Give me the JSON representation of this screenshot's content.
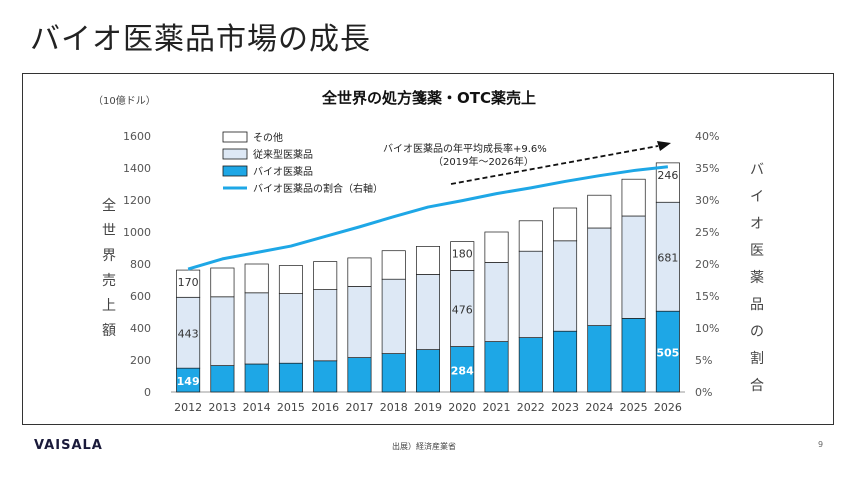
{
  "slide": {
    "title": "バイオ医薬品市場の成長",
    "logo": "VAISALA",
    "source": "出展）経済産業省",
    "page_number": "9"
  },
  "chart_data": {
    "type": "bar",
    "stacked": true,
    "title": "全世界の処方箋薬・OTC薬売上",
    "y_unit": "（10億ドル）",
    "ylabel": "全世界売上額",
    "y2label": "バイオ医薬品の割合",
    "ylim": [
      0,
      1600
    ],
    "y_ticks": [
      0,
      200,
      400,
      600,
      800,
      1000,
      1200,
      1400,
      1600
    ],
    "y2lim": [
      0,
      40
    ],
    "y2_ticks": [
      "0%",
      "5%",
      "10%",
      "15%",
      "20%",
      "25%",
      "30%",
      "35%",
      "40%"
    ],
    "categories": [
      "2012",
      "2013",
      "2014",
      "2015",
      "2016",
      "2017",
      "2018",
      "2019",
      "2020",
      "2021",
      "2022",
      "2023",
      "2024",
      "2025",
      "2026"
    ],
    "series": [
      {
        "name": "バイオ医薬品",
        "color": "#1ea7e6",
        "values": [
          149,
          165,
          175,
          180,
          195,
          215,
          240,
          265,
          284,
          315,
          340,
          380,
          415,
          460,
          505
        ]
      },
      {
        "name": "従来型医薬品",
        "color": "#dde8f5",
        "values": [
          443,
          430,
          445,
          435,
          445,
          445,
          465,
          470,
          476,
          495,
          540,
          565,
          610,
          640,
          681
        ]
      },
      {
        "name": "その他",
        "color": "#ffffff",
        "values": [
          170,
          180,
          180,
          175,
          175,
          178,
          178,
          175,
          180,
          190,
          190,
          205,
          205,
          230,
          246
        ]
      }
    ],
    "share_line": {
      "name": "バイオ医薬品の割合（右軸）",
      "color": "#1ea7e6",
      "values": [
        19.2,
        20.8,
        21.8,
        22.8,
        24.3,
        25.8,
        27.4,
        28.9,
        29.9,
        31.0,
        31.9,
        32.9,
        33.8,
        34.6,
        35.2
      ]
    },
    "data_labels": [
      {
        "series": 2,
        "index": 0,
        "text": "170",
        "white": false
      },
      {
        "series": 1,
        "index": 0,
        "text": "443",
        "white": false
      },
      {
        "series": 0,
        "index": 0,
        "text": "149",
        "white": true
      },
      {
        "series": 2,
        "index": 8,
        "text": "180",
        "white": false
      },
      {
        "series": 1,
        "index": 8,
        "text": "476",
        "white": false
      },
      {
        "series": 0,
        "index": 8,
        "text": "284",
        "white": true
      },
      {
        "series": 2,
        "index": 14,
        "text": "246",
        "white": false
      },
      {
        "series": 1,
        "index": 14,
        "text": "681",
        "white": false
      },
      {
        "series": 0,
        "index": 14,
        "text": "505",
        "white": true
      }
    ],
    "legend": {
      "placement": "top-left",
      "items": [
        "その他",
        "従来型医薬品",
        "バイオ医薬品",
        "バイオ医薬品の割合（右軸）"
      ]
    },
    "annotation": {
      "line1": "バイオ医薬品の年平均成長率+9.6%",
      "line2": "（2019年～2026年）"
    }
  }
}
